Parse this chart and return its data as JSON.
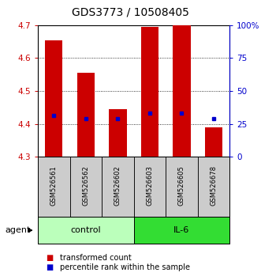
{
  "title": "GDS3773 / 10508405",
  "samples": [
    "GSM526561",
    "GSM526562",
    "GSM526602",
    "GSM526603",
    "GSM526605",
    "GSM526678"
  ],
  "bar_values": [
    4.655,
    4.555,
    4.445,
    4.695,
    4.7,
    4.39
  ],
  "bar_bottom": 4.3,
  "blue_dot_values": [
    4.425,
    4.415,
    4.415,
    4.432,
    4.432,
    4.415
  ],
  "ylim": [
    4.3,
    4.7
  ],
  "y_ticks": [
    4.3,
    4.4,
    4.5,
    4.6,
    4.7
  ],
  "right_y_ticks": [
    0,
    25,
    50,
    75,
    100
  ],
  "right_y_tick_labels": [
    "0",
    "25",
    "50",
    "75",
    "100%"
  ],
  "bar_color": "#CC0000",
  "blue_color": "#0000CC",
  "control_color": "#BBFFBB",
  "il6_color": "#33DD33",
  "sample_box_color": "#CCCCCC",
  "agent_label": "agent",
  "control_label": "control",
  "il6_label": "IL-6",
  "legend_bar_label": "transformed count",
  "legend_dot_label": "percentile rank within the sample",
  "bar_width": 0.55,
  "title_fontsize": 10,
  "tick_fontsize": 7.5,
  "sample_fontsize": 6,
  "group_fontsize": 8,
  "legend_fontsize": 7
}
